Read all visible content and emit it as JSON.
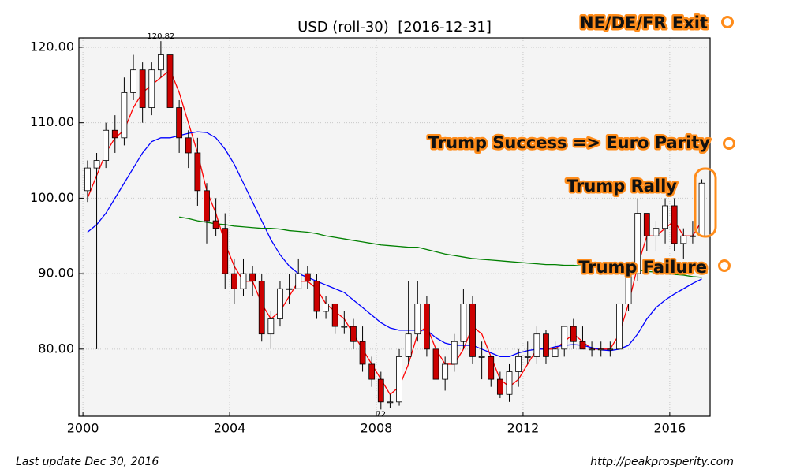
{
  "chart_data": {
    "type": "candlestick",
    "title": "USD (roll-30)  [2016-12-31]",
    "x": [
      2000.125,
      2000.375,
      2000.625,
      2000.875,
      2001.125,
      2001.375,
      2001.625,
      2001.875,
      2002.125,
      2002.375,
      2002.625,
      2002.875,
      2003.125,
      2003.375,
      2003.625,
      2003.875,
      2004.125,
      2004.375,
      2004.625,
      2004.875,
      2005.125,
      2005.375,
      2005.625,
      2005.875,
      2006.125,
      2006.375,
      2006.625,
      2006.875,
      2007.125,
      2007.375,
      2007.625,
      2007.875,
      2008.125,
      2008.375,
      2008.625,
      2008.875,
      2009.125,
      2009.375,
      2009.625,
      2009.875,
      2010.125,
      2010.375,
      2010.625,
      2010.875,
      2011.125,
      2011.375,
      2011.625,
      2011.875,
      2012.125,
      2012.375,
      2012.625,
      2012.875,
      2013.125,
      2013.375,
      2013.625,
      2013.875,
      2014.125,
      2014.375,
      2014.625,
      2014.875,
      2015.125,
      2015.375,
      2015.625,
      2015.875,
      2016.125,
      2016.375,
      2016.625,
      2016.875
    ],
    "candles": {
      "open": [
        101,
        104,
        105,
        109,
        108,
        114,
        117,
        112,
        117,
        119,
        112,
        108,
        106,
        101,
        97,
        96,
        90,
        88,
        90,
        89,
        82,
        84,
        88,
        88,
        90,
        89,
        85,
        86,
        83,
        83,
        81,
        78,
        76,
        73,
        73,
        79,
        82,
        86,
        80,
        76,
        78,
        81,
        86,
        79,
        79,
        76,
        74,
        77,
        79,
        79,
        82,
        79,
        80,
        83,
        81,
        80,
        80,
        80,
        80,
        86,
        90,
        98,
        95,
        96,
        99,
        94,
        95,
        95
      ],
      "high": [
        105,
        106,
        110,
        111,
        116,
        119,
        118,
        118,
        120.82,
        120,
        113,
        109,
        108,
        102,
        100,
        98,
        92,
        92,
        91,
        90,
        85,
        89,
        90,
        92,
        91,
        90,
        87,
        86,
        85,
        84,
        83,
        79,
        77,
        74,
        80,
        89,
        89,
        87,
        80,
        79,
        82,
        88,
        87,
        81,
        79,
        77,
        78,
        80,
        81,
        83,
        82.5,
        81,
        83,
        84,
        83,
        81,
        81,
        81,
        86,
        90,
        100,
        98,
        97,
        100,
        100,
        96,
        97,
        102.5
      ],
      "low": [
        99.5,
        80,
        104,
        106,
        107,
        113,
        110,
        111,
        116,
        111,
        106,
        104,
        99,
        94,
        95,
        88,
        86,
        87,
        87,
        81,
        80,
        83,
        86,
        88,
        88,
        84,
        84,
        82,
        82,
        80,
        77,
        75,
        72,
        72.18,
        72.5,
        78,
        81,
        79,
        76,
        74.5,
        77,
        80,
        78,
        76,
        75,
        73.5,
        73,
        75,
        78,
        78,
        78,
        79,
        79,
        80,
        80,
        79,
        79,
        79,
        80,
        85,
        89,
        93,
        93,
        94,
        93,
        92,
        94,
        95
      ],
      "close": [
        104,
        105,
        109,
        108,
        114,
        117,
        112,
        117,
        119,
        112,
        108,
        106,
        101,
        97,
        96,
        90,
        88,
        90,
        89,
        82,
        84,
        88,
        88,
        90,
        89,
        85,
        86,
        83,
        83,
        81,
        78,
        76,
        73,
        73,
        79,
        82,
        86,
        80,
        76,
        78,
        81,
        86,
        79,
        79,
        76,
        74,
        77,
        79,
        79,
        82,
        79,
        80,
        83,
        81,
        80,
        80,
        80,
        80,
        86,
        90,
        98,
        95,
        96,
        99,
        94,
        95,
        95,
        102
      ]
    },
    "series": [
      {
        "color": "#ff0000",
        "values": [
          100,
          103,
          106,
          108,
          109,
          112,
          114,
          115,
          116,
          117,
          114,
          110,
          106,
          101,
          98,
          94,
          91,
          89,
          89,
          86,
          84,
          85,
          87,
          89,
          89,
          88,
          86,
          85,
          84,
          82,
          80,
          78,
          76,
          74,
          75,
          78,
          82,
          83,
          80,
          78,
          78,
          80,
          83,
          82,
          79,
          76,
          75,
          76,
          78,
          80,
          80,
          80,
          81,
          82,
          81,
          80,
          80,
          80,
          82,
          86,
          91,
          95,
          95,
          96,
          97,
          95,
          95,
          97
        ]
      },
      {
        "color": "#0000ff",
        "values": [
          95.5,
          96.5,
          98,
          100,
          102,
          104,
          106,
          107.5,
          108,
          108,
          108.3,
          108.6,
          108.8,
          108.7,
          108,
          106.5,
          104.5,
          102,
          99.5,
          97,
          94.5,
          92.5,
          91,
          90,
          89.5,
          89,
          88.5,
          88,
          87.5,
          86.5,
          85.5,
          84.5,
          83.5,
          82.8,
          82.5,
          82.5,
          82.5,
          82.5,
          81.5,
          80.8,
          80.5,
          80.5,
          80.5,
          80,
          79.5,
          79,
          79,
          79.5,
          79.8,
          80,
          80,
          80.3,
          80.5,
          80.6,
          80.5,
          80.2,
          79.9,
          79.8,
          80,
          80.5,
          82,
          84,
          85.5,
          86.5,
          87.3,
          88,
          88.7,
          89.3
        ]
      },
      {
        "color": "#008000",
        "values": [
          null,
          null,
          null,
          null,
          null,
          null,
          null,
          null,
          null,
          null,
          97.5,
          97.3,
          97,
          96.8,
          96.6,
          96.5,
          96.3,
          96.2,
          96.1,
          96,
          96,
          95.9,
          95.7,
          95.6,
          95.5,
          95.3,
          95,
          94.8,
          94.6,
          94.4,
          94.2,
          94,
          93.8,
          93.7,
          93.6,
          93.5,
          93.5,
          93.2,
          92.9,
          92.6,
          92.4,
          92.2,
          92,
          91.9,
          91.8,
          91.7,
          91.6,
          91.5,
          91.4,
          91.3,
          91.2,
          91.2,
          91.1,
          91.1,
          91,
          91,
          90.9,
          90.9,
          90.8,
          90.7,
          90.5,
          90.3,
          90.2,
          90,
          89.9,
          89.8,
          89.6,
          89.5
        ]
      }
    ],
    "up_color": "#ffffff",
    "down_color": "#cc0000",
    "xlim": [
      1999.89,
      2017.1
    ],
    "xticks": [
      2000,
      2004,
      2008,
      2012,
      2016
    ],
    "ylim": [
      71.1,
      121.25
    ],
    "yticks": [
      {
        "value": 80,
        "label": "80.00"
      },
      {
        "value": 90,
        "label": "90.00"
      },
      {
        "value": 100,
        "label": "100.00"
      },
      {
        "value": 110,
        "label": "110.00"
      },
      {
        "value": 120,
        "label": "120.00"
      }
    ],
    "grid": true,
    "annotations": [
      "NE/DE/FR Exit",
      "Trump Success => Euro Parity",
      "Trump Rally",
      "Trump Failure"
    ],
    "footer_left": "Last update Dec 30, 2016",
    "footer_right": "http://peakprosperity.com"
  }
}
